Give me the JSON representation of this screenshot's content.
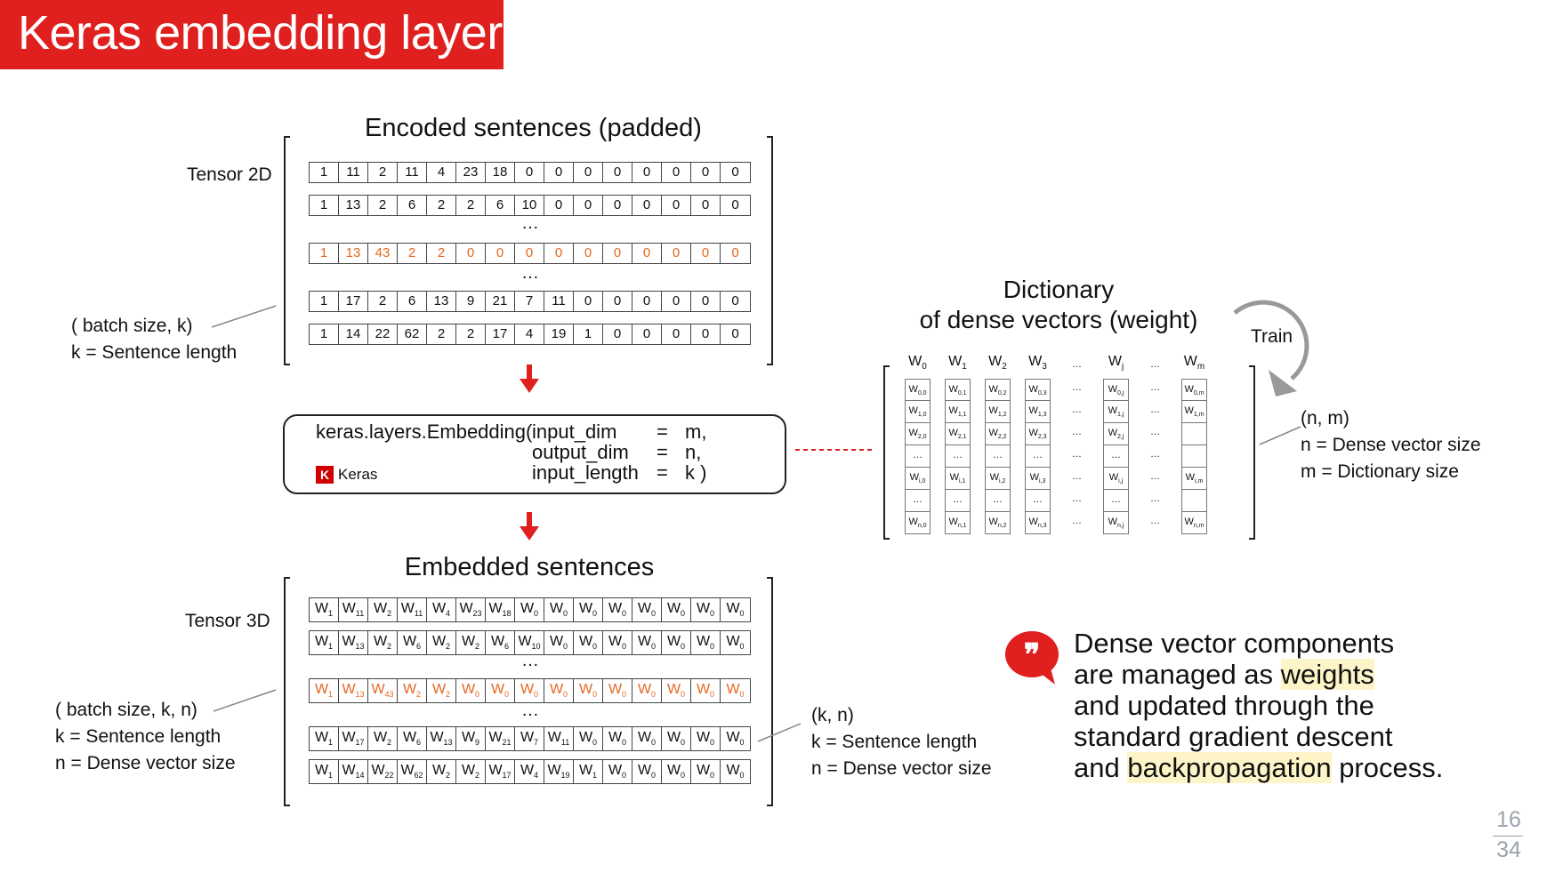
{
  "title": "Keras  embedding layer",
  "encoded": {
    "heading": "Encoded sentences (padded)",
    "tensor_label": "Tensor 2D",
    "shape_label": "( batch size, k)",
    "k_label": "k = Sentence length",
    "rows": [
      [
        "1",
        "11",
        "2",
        "11",
        "4",
        "23",
        "18",
        "0",
        "0",
        "0",
        "0",
        "0",
        "0",
        "0",
        "0"
      ],
      [
        "1",
        "13",
        "2",
        "6",
        "2",
        "2",
        "6",
        "10",
        "0",
        "0",
        "0",
        "0",
        "0",
        "0",
        "0"
      ],
      [
        "1",
        "13",
        "43",
        "2",
        "2",
        "0",
        "0",
        "0",
        "0",
        "0",
        "0",
        "0",
        "0",
        "0",
        "0"
      ],
      [
        "1",
        "17",
        "2",
        "6",
        "13",
        "9",
        "21",
        "7",
        "11",
        "0",
        "0",
        "0",
        "0",
        "0",
        "0"
      ],
      [
        "1",
        "14",
        "22",
        "62",
        "2",
        "2",
        "17",
        "4",
        "19",
        "1",
        "0",
        "0",
        "0",
        "0",
        "0"
      ]
    ],
    "ellipsis": "…"
  },
  "embedding": {
    "call": "keras.layers.Embedding(",
    "params": [
      {
        "name": "input_dim",
        "eq": "=",
        "value": "m,"
      },
      {
        "name": "output_dim",
        "eq": "=",
        "value": "n,"
      },
      {
        "name": "input_length",
        "eq": "=",
        "value": "k  )"
      }
    ],
    "logo_letter": "K",
    "logo_text": "Keras"
  },
  "embedded": {
    "heading": "Embedded sentences",
    "tensor_label": "Tensor 3D",
    "shape_label": "( batch size, k, n)",
    "k_label": "k = Sentence length",
    "n_label": "n = Dense vector size",
    "right_shape": "(k, n)",
    "right_k": "k = Sentence length",
    "right_n": "n = Dense vector size",
    "letter": "W",
    "ellipsis": "…"
  },
  "dictionary": {
    "heading_line1": "Dictionary",
    "heading_line2": "of dense vectors (weight)",
    "train": "Train",
    "shape": "(n, m)",
    "n_label": "n = Dense vector size",
    "m_label": "m = Dictionary size",
    "columns": [
      {
        "head": "0",
        "cells": [
          "0,0",
          "1,0",
          "2,0",
          "…",
          "i,0",
          "…",
          "n,0"
        ]
      },
      {
        "head": "1",
        "cells": [
          "0,1",
          "1,1",
          "2,1",
          "…",
          "i,1",
          "…",
          "n,1"
        ]
      },
      {
        "head": "2",
        "cells": [
          "0,2",
          "1,2",
          "2,2",
          "…",
          "i,2",
          "…",
          "n,2"
        ]
      },
      {
        "head": "3",
        "cells": [
          "0,3",
          "1,3",
          "2,3",
          "…",
          "i,3",
          "…",
          "n,3"
        ]
      },
      {
        "head": "j",
        "cells": [
          "0,j",
          "1,j",
          "2,j",
          "…",
          "i,j",
          "…",
          "n,j"
        ]
      },
      {
        "head": "m",
        "cells": [
          "0,m",
          "1,m",
          "",
          "",
          "i,m",
          "",
          "n,m"
        ]
      }
    ],
    "dots": "…"
  },
  "quote": {
    "line1": "Dense vector components",
    "line2_pre": "are managed as ",
    "line2_hl": "weights",
    "line3": "and  updated through the",
    "line4": "standard gradient descent",
    "line5_pre": "and ",
    "line5_hl": "backpropagation",
    "line5_post": " process."
  },
  "page": {
    "current": "16",
    "total": "34"
  },
  "colors": {
    "accent": "#e0201f",
    "highlight_text": "#e6661f",
    "highlight_bg": "#fdf4c8"
  }
}
